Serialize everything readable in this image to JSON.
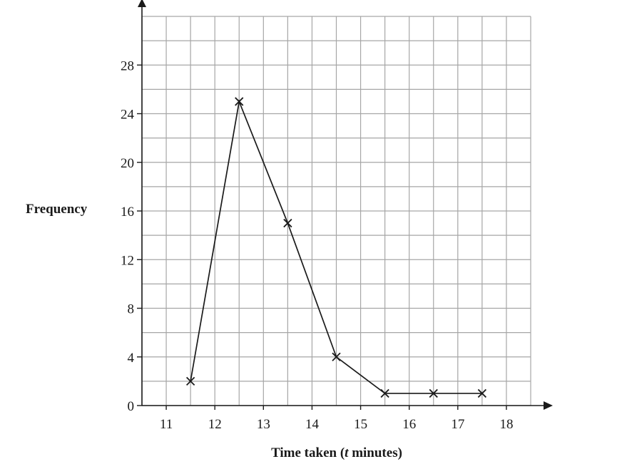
{
  "chart_data": {
    "type": "line",
    "xlabel_parts": [
      "Time taken (",
      "t",
      " minutes)"
    ],
    "ylabel": "Frequency",
    "x": [
      11.5,
      12.5,
      13.5,
      14.5,
      15.5,
      16.5,
      17.5
    ],
    "series": [
      {
        "values": [
          2,
          25,
          15,
          4,
          1,
          1,
          1
        ]
      }
    ],
    "xlim": [
      10.5,
      18.5
    ],
    "ylim": [
      0,
      32
    ],
    "x_ticks": [
      11,
      12,
      13,
      14,
      15,
      16,
      17,
      18
    ],
    "y_ticks": [
      0,
      4,
      8,
      12,
      16,
      20,
      24,
      28
    ],
    "x_grid_step": 0.5,
    "y_grid_step": 2,
    "grid": true,
    "marker": "x",
    "colors": {
      "grid": "#a6a6a6",
      "line": "#1a1a1a"
    }
  }
}
